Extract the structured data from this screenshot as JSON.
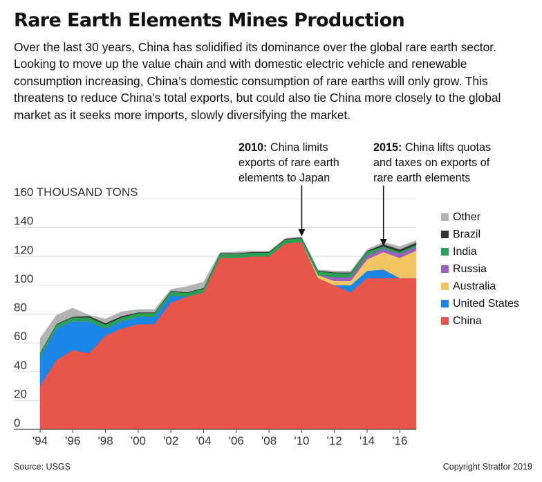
{
  "chart_data": {
    "type": "area",
    "stacked": true,
    "title": "Rare Earth Elements Mines Production",
    "subtitle": "Over the last 30 years, China has solidified its dominance over the global rare earth sector. Looking to move up the value chain and with domestic electric vehicle and renewable consumption increasing, China’s domestic consumption of rare earths will only grow. This threatens to reduce China’s total exports, but could also tie China more closely to the global market as it seeks more imports, slowly diversifying the market.",
    "ylabel": "160 THOUSAND TONS",
    "ylim": [
      0,
      160
    ],
    "yticks": [
      "0",
      "20",
      "40",
      "60",
      "80",
      "100",
      "120",
      "140"
    ],
    "x": [
      1994,
      1995,
      1996,
      1997,
      1998,
      1999,
      2000,
      2001,
      2002,
      2003,
      2004,
      2005,
      2006,
      2007,
      2008,
      2009,
      2010,
      2011,
      2012,
      2013,
      2014,
      2015,
      2016,
      2017
    ],
    "xtick_labels": [
      "'94",
      "'96",
      "'98",
      "'00",
      "'02",
      "'04",
      "'06",
      "'08",
      "'10",
      "'12",
      "'14",
      "'16"
    ],
    "xtick_years": [
      1994,
      1996,
      1998,
      2000,
      2002,
      2004,
      2006,
      2008,
      2010,
      2012,
      2014,
      2016
    ],
    "series": [
      {
        "name": "China",
        "color": "#e8554a",
        "values": [
          30,
          48,
          55,
          53,
          65,
          70,
          73,
          73,
          88,
          92,
          95,
          119,
          119,
          120,
          120,
          129,
          130,
          105,
          100,
          95,
          105,
          105,
          105,
          105
        ]
      },
      {
        "name": "United States",
        "color": "#1b86e8",
        "values": [
          20,
          22,
          20,
          22,
          5,
          5,
          5,
          5,
          5,
          0,
          0,
          0,
          0,
          0,
          0,
          0,
          0,
          0,
          0,
          5,
          5,
          6,
          0,
          0
        ]
      },
      {
        "name": "Australia",
        "color": "#f2c663",
        "values": [
          0,
          0,
          0,
          0,
          0,
          0,
          0,
          0,
          0,
          0,
          0,
          0,
          0,
          0,
          0,
          0,
          0,
          2,
          3,
          3,
          8,
          12,
          14,
          19
        ]
      },
      {
        "name": "Russia",
        "color": "#9b5fc0",
        "values": [
          0,
          0,
          0,
          0,
          0,
          0,
          0,
          0,
          0,
          0,
          0,
          0,
          0,
          0,
          0,
          0,
          0,
          0,
          2.5,
          2.5,
          2.5,
          2.5,
          2.8,
          2.6
        ]
      },
      {
        "name": "India",
        "color": "#29a055",
        "values": [
          2.7,
          2.7,
          2.7,
          2.7,
          2.7,
          2.7,
          2.7,
          2.7,
          2.7,
          2.7,
          2.7,
          2.7,
          2.7,
          2.7,
          2.7,
          2.7,
          2.7,
          2.8,
          2.9,
          2.9,
          2.9,
          1.5,
          1.5,
          1.5
        ]
      },
      {
        "name": "Brazil",
        "color": "#333333",
        "values": [
          0.5,
          0.5,
          0.5,
          1,
          1,
          1,
          0.5,
          0.5,
          0.5,
          0.5,
          0.5,
          0.5,
          0.5,
          0.5,
          0.5,
          0.5,
          0.5,
          0.5,
          0.5,
          0.5,
          0.5,
          1.5,
          1.5,
          1.5
        ]
      },
      {
        "name": "Other",
        "color": "#b3b3b3",
        "values": [
          10,
          6,
          6,
          0.5,
          3,
          3,
          2,
          2,
          1,
          4,
          4,
          0.5,
          1,
          0.5,
          0.5,
          0.5,
          0.5,
          0.5,
          1,
          1,
          1,
          1.5,
          2,
          1.5
        ]
      }
    ],
    "annotations": [
      {
        "x": 2010,
        "bold": "2010:",
        "text": " China limits exports of rare earth elements to Japan"
      },
      {
        "x": 2015,
        "bold": "2015:",
        "text": " China lifts quotas and taxes on exports of rare earth elements"
      }
    ],
    "legend_order": [
      "Other",
      "Brazil",
      "India",
      "Russia",
      "Australia",
      "United States",
      "China"
    ]
  },
  "footer": {
    "source": "Source: USGS",
    "copyright": "Copyright Stratfor 2019"
  }
}
